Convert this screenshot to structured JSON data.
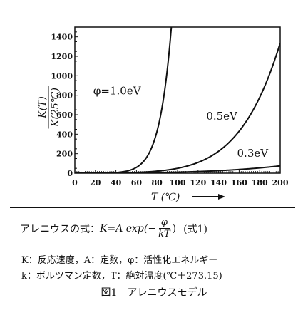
{
  "chart_data": {
    "type": "line",
    "xlabel": "T (℃)",
    "ylabel_numerator": "K(T)",
    "ylabel_denominator": "K(25℃)",
    "xlim": [
      0,
      200
    ],
    "ylim": [
      0,
      1500
    ],
    "x_ticks": [
      0,
      20,
      40,
      60,
      80,
      100,
      120,
      140,
      160,
      180,
      200
    ],
    "y_ticks": [
      0,
      200,
      400,
      600,
      800,
      1000,
      1200,
      1400
    ],
    "grid": false,
    "reference_temp_c": 25,
    "kelvin_offset": 273.15,
    "series": [
      {
        "name": "φ=1.0eV",
        "activation_ev": 1.0
      },
      {
        "name": "0.5eV",
        "activation_ev": 0.5
      },
      {
        "name": "0.3eV",
        "activation_ev": 0.3
      }
    ],
    "sample_points": [
      {
        "series": "φ=1.0eV",
        "x": [
          60,
          80,
          90,
          100,
          104
        ],
        "y": [
          50,
          280,
          640,
          1370,
          1500
        ]
      },
      {
        "series": "0.5eV",
        "x": [
          100,
          120,
          140,
          160,
          180,
          200
        ],
        "y": [
          40,
          90,
          180,
          340,
          600,
          1010
        ]
      },
      {
        "series": "0.3eV",
        "x": [
          100,
          140,
          160,
          180,
          200
        ],
        "y": [
          9,
          23,
          34,
          48,
          66
        ]
      }
    ]
  },
  "formula": {
    "prefix": "アレニウスの式：",
    "lhs": "K=A exp(−",
    "frac_num": "φ",
    "frac_den": "kT",
    "close": ")",
    "ref": "(式1)"
  },
  "legend_line1": "K：反応速度，A：定数，φ：活性化エネルギー",
  "legend_line2": "k：ボルツマン定数，T：絶対温度(℃＋273.15)",
  "figure_caption": "図1　アレニウスモデル"
}
